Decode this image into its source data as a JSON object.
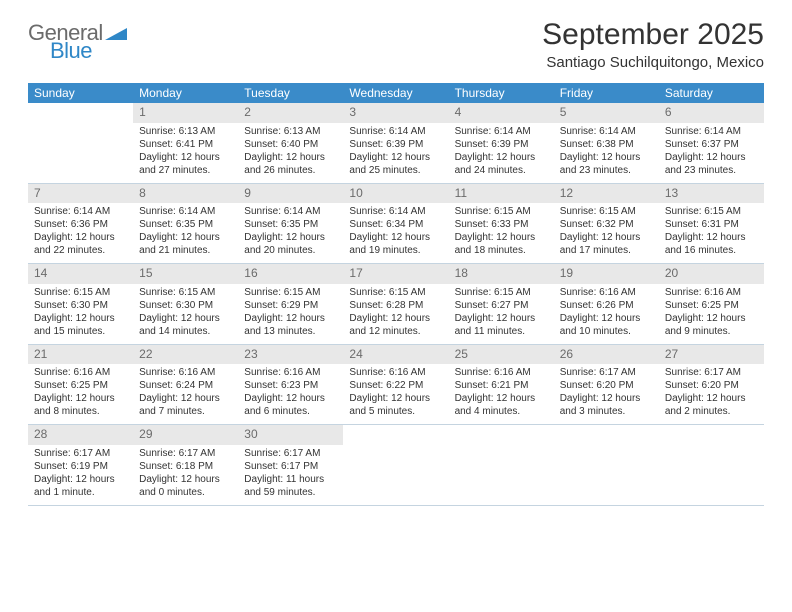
{
  "logo": {
    "word1": "General",
    "word2": "Blue"
  },
  "title": "September 2025",
  "location": "Santiago Suchilquitongo, Mexico",
  "colors": {
    "header_bg": "#3a8bc9",
    "header_text": "#ffffff",
    "daynum_bg": "#e8e8e8",
    "daynum_text": "#6b6b6b",
    "body_text": "#333333",
    "row_divider": "#c5d4e0",
    "logo_gray": "#6b6b6b",
    "logo_blue": "#2f87c7"
  },
  "weekdays": [
    "Sunday",
    "Monday",
    "Tuesday",
    "Wednesday",
    "Thursday",
    "Friday",
    "Saturday"
  ],
  "weeks": [
    [
      null,
      {
        "n": "1",
        "sr": "Sunrise: 6:13 AM",
        "ss": "Sunset: 6:41 PM",
        "dl1": "Daylight: 12 hours",
        "dl2": "and 27 minutes."
      },
      {
        "n": "2",
        "sr": "Sunrise: 6:13 AM",
        "ss": "Sunset: 6:40 PM",
        "dl1": "Daylight: 12 hours",
        "dl2": "and 26 minutes."
      },
      {
        "n": "3",
        "sr": "Sunrise: 6:14 AM",
        "ss": "Sunset: 6:39 PM",
        "dl1": "Daylight: 12 hours",
        "dl2": "and 25 minutes."
      },
      {
        "n": "4",
        "sr": "Sunrise: 6:14 AM",
        "ss": "Sunset: 6:39 PM",
        "dl1": "Daylight: 12 hours",
        "dl2": "and 24 minutes."
      },
      {
        "n": "5",
        "sr": "Sunrise: 6:14 AM",
        "ss": "Sunset: 6:38 PM",
        "dl1": "Daylight: 12 hours",
        "dl2": "and 23 minutes."
      },
      {
        "n": "6",
        "sr": "Sunrise: 6:14 AM",
        "ss": "Sunset: 6:37 PM",
        "dl1": "Daylight: 12 hours",
        "dl2": "and 23 minutes."
      }
    ],
    [
      {
        "n": "7",
        "sr": "Sunrise: 6:14 AM",
        "ss": "Sunset: 6:36 PM",
        "dl1": "Daylight: 12 hours",
        "dl2": "and 22 minutes."
      },
      {
        "n": "8",
        "sr": "Sunrise: 6:14 AM",
        "ss": "Sunset: 6:35 PM",
        "dl1": "Daylight: 12 hours",
        "dl2": "and 21 minutes."
      },
      {
        "n": "9",
        "sr": "Sunrise: 6:14 AM",
        "ss": "Sunset: 6:35 PM",
        "dl1": "Daylight: 12 hours",
        "dl2": "and 20 minutes."
      },
      {
        "n": "10",
        "sr": "Sunrise: 6:14 AM",
        "ss": "Sunset: 6:34 PM",
        "dl1": "Daylight: 12 hours",
        "dl2": "and 19 minutes."
      },
      {
        "n": "11",
        "sr": "Sunrise: 6:15 AM",
        "ss": "Sunset: 6:33 PM",
        "dl1": "Daylight: 12 hours",
        "dl2": "and 18 minutes."
      },
      {
        "n": "12",
        "sr": "Sunrise: 6:15 AM",
        "ss": "Sunset: 6:32 PM",
        "dl1": "Daylight: 12 hours",
        "dl2": "and 17 minutes."
      },
      {
        "n": "13",
        "sr": "Sunrise: 6:15 AM",
        "ss": "Sunset: 6:31 PM",
        "dl1": "Daylight: 12 hours",
        "dl2": "and 16 minutes."
      }
    ],
    [
      {
        "n": "14",
        "sr": "Sunrise: 6:15 AM",
        "ss": "Sunset: 6:30 PM",
        "dl1": "Daylight: 12 hours",
        "dl2": "and 15 minutes."
      },
      {
        "n": "15",
        "sr": "Sunrise: 6:15 AM",
        "ss": "Sunset: 6:30 PM",
        "dl1": "Daylight: 12 hours",
        "dl2": "and 14 minutes."
      },
      {
        "n": "16",
        "sr": "Sunrise: 6:15 AM",
        "ss": "Sunset: 6:29 PM",
        "dl1": "Daylight: 12 hours",
        "dl2": "and 13 minutes."
      },
      {
        "n": "17",
        "sr": "Sunrise: 6:15 AM",
        "ss": "Sunset: 6:28 PM",
        "dl1": "Daylight: 12 hours",
        "dl2": "and 12 minutes."
      },
      {
        "n": "18",
        "sr": "Sunrise: 6:15 AM",
        "ss": "Sunset: 6:27 PM",
        "dl1": "Daylight: 12 hours",
        "dl2": "and 11 minutes."
      },
      {
        "n": "19",
        "sr": "Sunrise: 6:16 AM",
        "ss": "Sunset: 6:26 PM",
        "dl1": "Daylight: 12 hours",
        "dl2": "and 10 minutes."
      },
      {
        "n": "20",
        "sr": "Sunrise: 6:16 AM",
        "ss": "Sunset: 6:25 PM",
        "dl1": "Daylight: 12 hours",
        "dl2": "and 9 minutes."
      }
    ],
    [
      {
        "n": "21",
        "sr": "Sunrise: 6:16 AM",
        "ss": "Sunset: 6:25 PM",
        "dl1": "Daylight: 12 hours",
        "dl2": "and 8 minutes."
      },
      {
        "n": "22",
        "sr": "Sunrise: 6:16 AM",
        "ss": "Sunset: 6:24 PM",
        "dl1": "Daylight: 12 hours",
        "dl2": "and 7 minutes."
      },
      {
        "n": "23",
        "sr": "Sunrise: 6:16 AM",
        "ss": "Sunset: 6:23 PM",
        "dl1": "Daylight: 12 hours",
        "dl2": "and 6 minutes."
      },
      {
        "n": "24",
        "sr": "Sunrise: 6:16 AM",
        "ss": "Sunset: 6:22 PM",
        "dl1": "Daylight: 12 hours",
        "dl2": "and 5 minutes."
      },
      {
        "n": "25",
        "sr": "Sunrise: 6:16 AM",
        "ss": "Sunset: 6:21 PM",
        "dl1": "Daylight: 12 hours",
        "dl2": "and 4 minutes."
      },
      {
        "n": "26",
        "sr": "Sunrise: 6:17 AM",
        "ss": "Sunset: 6:20 PM",
        "dl1": "Daylight: 12 hours",
        "dl2": "and 3 minutes."
      },
      {
        "n": "27",
        "sr": "Sunrise: 6:17 AM",
        "ss": "Sunset: 6:20 PM",
        "dl1": "Daylight: 12 hours",
        "dl2": "and 2 minutes."
      }
    ],
    [
      {
        "n": "28",
        "sr": "Sunrise: 6:17 AM",
        "ss": "Sunset: 6:19 PM",
        "dl1": "Daylight: 12 hours",
        "dl2": "and 1 minute."
      },
      {
        "n": "29",
        "sr": "Sunrise: 6:17 AM",
        "ss": "Sunset: 6:18 PM",
        "dl1": "Daylight: 12 hours",
        "dl2": "and 0 minutes."
      },
      {
        "n": "30",
        "sr": "Sunrise: 6:17 AM",
        "ss": "Sunset: 6:17 PM",
        "dl1": "Daylight: 11 hours",
        "dl2": "and 59 minutes."
      },
      null,
      null,
      null,
      null
    ]
  ]
}
